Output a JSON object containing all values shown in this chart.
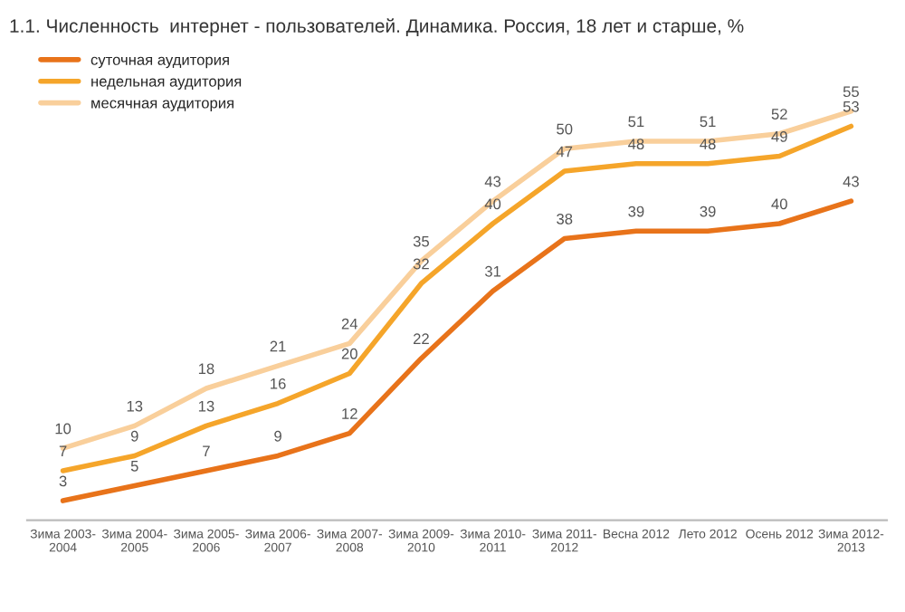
{
  "chart_data": {
    "type": "line",
    "title": "1.1. Численность  интернет - пользователей. Динамика. Россия, 18 лет и старше, %",
    "categories": [
      "Зима 2003-\n2004",
      "Зима 2004-\n2005",
      "Зима 2005-\n2006",
      "Зима 2006-\n2007",
      "Зима 2007-\n2008",
      "Зима 2009-\n2010",
      "Зима 2010-\n2011",
      "Зима 2011-\n2012",
      "Весна 2012",
      "Лето 2012",
      "Осень 2012",
      "Зима 2012-\n2013"
    ],
    "series": [
      {
        "name": "суточная аудитория",
        "color": "#e8731a",
        "values": [
          3,
          5,
          7,
          9,
          12,
          22,
          31,
          38,
          39,
          39,
          40,
          43
        ]
      },
      {
        "name": "недельная аудитория",
        "color": "#f5a52a",
        "values": [
          7,
          9,
          13,
          16,
          20,
          32,
          40,
          47,
          48,
          48,
          49,
          53
        ]
      },
      {
        "name": "месячная аудитория",
        "color": "#f9cf9b",
        "values": [
          10,
          13,
          18,
          21,
          24,
          35,
          43,
          50,
          51,
          51,
          52,
          55
        ]
      }
    ],
    "data_labels": true,
    "legend": "top left",
    "grid": false,
    "marker": "none",
    "line_style": "solid"
  }
}
